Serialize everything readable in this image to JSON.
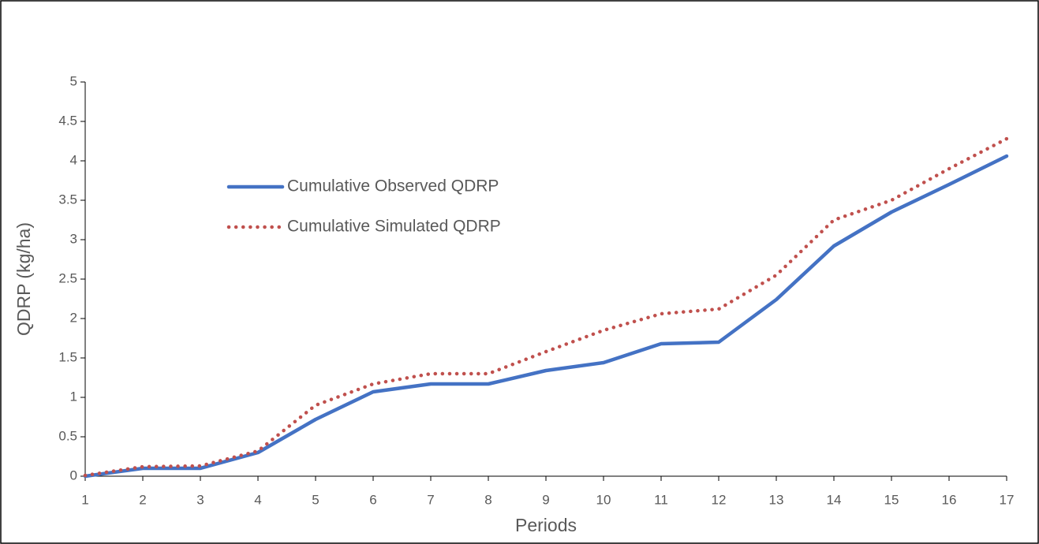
{
  "chart_data": {
    "type": "line",
    "x_label": "Periods",
    "y_label": "QDRP (kg/ha)",
    "x": [
      1,
      2,
      3,
      4,
      5,
      6,
      7,
      8,
      9,
      10,
      11,
      12,
      13,
      14,
      15,
      16,
      17
    ],
    "series": [
      {
        "name": "Cumulative Observed QDRP",
        "color": "#4472c4",
        "style": "solid",
        "values": [
          0,
          0.1,
          0.1,
          0.3,
          0.72,
          1.07,
          1.17,
          1.17,
          1.34,
          1.44,
          1.68,
          1.7,
          2.24,
          2.92,
          3.35,
          3.7,
          4.06
        ]
      },
      {
        "name": "Cumulative Simulated QDRP",
        "color": "#c0504d",
        "style": "dotted",
        "values": [
          0.01,
          0.12,
          0.13,
          0.32,
          0.9,
          1.17,
          1.3,
          1.3,
          1.58,
          1.85,
          2.06,
          2.12,
          2.55,
          3.25,
          3.5,
          3.9,
          4.28
        ]
      }
    ],
    "xlim": [
      1,
      17
    ],
    "xticks": [
      1,
      2,
      3,
      4,
      5,
      6,
      7,
      8,
      9,
      10,
      11,
      12,
      13,
      14,
      15,
      16,
      17
    ],
    "ylim": [
      0,
      5
    ],
    "yticks": [
      0,
      0.5,
      1,
      1.5,
      2,
      2.5,
      3,
      3.5,
      4,
      4.5,
      5
    ],
    "grid": false,
    "legend": "upper-left"
  }
}
